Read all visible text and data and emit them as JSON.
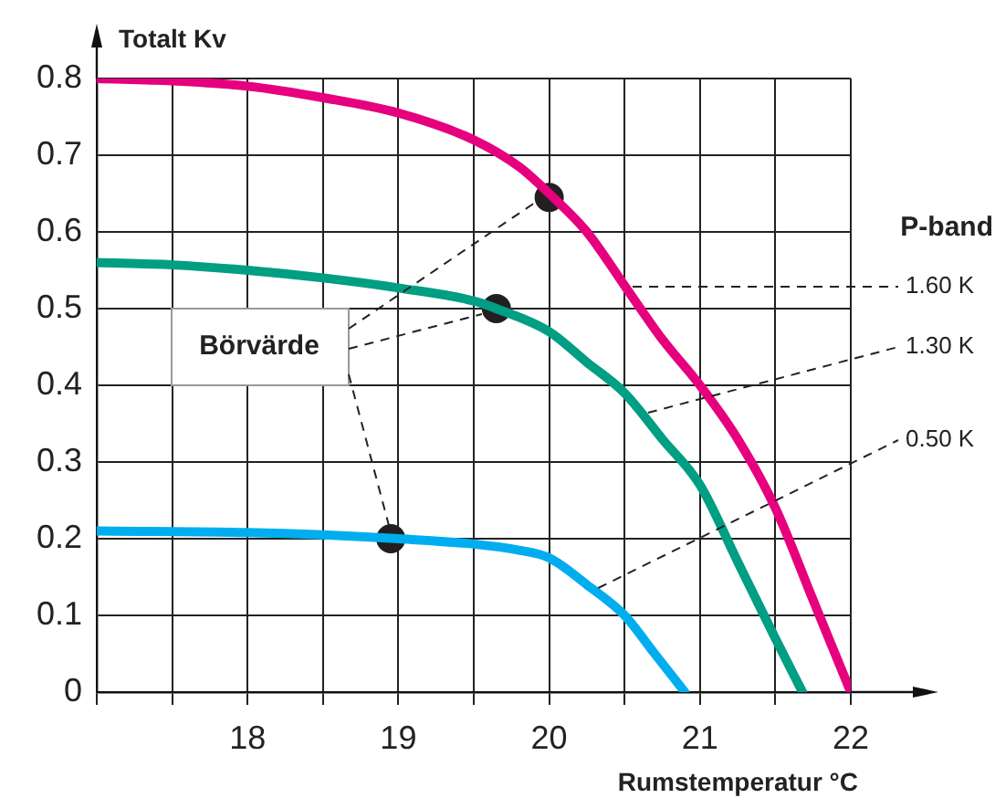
{
  "chart_data": {
    "type": "line",
    "xlabel": "Rumstemperatur °C",
    "ylabel": "Totalt Kv",
    "xlim": [
      17,
      22
    ],
    "ylim": [
      0,
      0.8
    ],
    "xticks": [
      {
        "value": 17,
        "label": null
      },
      {
        "value": 17.5,
        "label": null
      },
      18,
      {
        "value": 18.5,
        "label": null
      },
      19,
      {
        "value": 19.5,
        "label": null
      },
      20,
      {
        "value": 20.5,
        "label": null
      },
      21,
      {
        "value": 21.5,
        "label": null
      },
      22
    ],
    "yticks": [
      0,
      0.1,
      0.2,
      0.3,
      0.4,
      0.5,
      0.6,
      0.7,
      0.8
    ],
    "grid": true,
    "legend": false,
    "marker": "none",
    "annotations": [
      {
        "text": "Börvärde",
        "x": 19.65,
        "y": 0.5
      },
      "P-band"
    ],
    "series": [
      {
        "name": "1.60 K",
        "color": "#e6007e",
        "x": [
          17,
          17.5,
          18,
          18.5,
          19,
          19.5,
          19.8,
          20,
          20.25,
          20.5,
          20.75,
          21,
          21.25,
          21.5,
          21.75,
          22
        ],
        "values": [
          0.8,
          0.797,
          0.79,
          0.775,
          0.755,
          0.72,
          0.685,
          0.65,
          0.6,
          0.53,
          0.46,
          0.4,
          0.33,
          0.24,
          0.12,
          0
        ]
      },
      {
        "name": "1.30 K",
        "color": "#009e82",
        "x": [
          17,
          17.5,
          18,
          18.5,
          19,
          19.5,
          19.65,
          20,
          20.25,
          20.5,
          20.75,
          21,
          21.25,
          21.5,
          21.68
        ],
        "values": [
          0.56,
          0.557,
          0.55,
          0.54,
          0.527,
          0.51,
          0.5,
          0.47,
          0.43,
          0.39,
          0.33,
          0.27,
          0.17,
          0.07,
          0
        ]
      },
      {
        "name": "0.50 K",
        "color": "#00aeef",
        "x": [
          17,
          18,
          18.5,
          19,
          19.5,
          19.8,
          20,
          20.25,
          20.5,
          20.7,
          20.9
        ],
        "values": [
          0.21,
          0.208,
          0.205,
          0.2,
          0.193,
          0.185,
          0.175,
          0.14,
          0.1,
          0.05,
          0
        ]
      },
      {
        "type": "scatter",
        "color": "#231f20",
        "marker": "circle",
        "x": [
          20,
          19.65,
          18.95
        ],
        "values": [
          0.645,
          0.5,
          0.2
        ]
      }
    ]
  }
}
